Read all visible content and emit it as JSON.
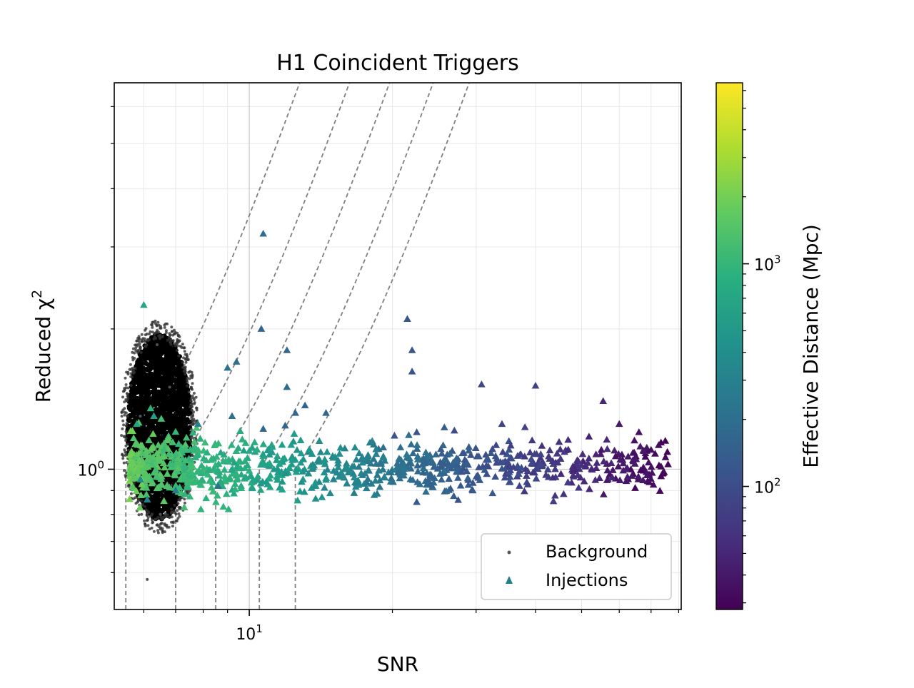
{
  "chart_data": {
    "type": "scatter",
    "title": "H1 Coincident Triggers",
    "xlabel": "SNR",
    "ylabel": "Reduced χ²",
    "ylabel_main": "Reduced χ",
    "ylabel_exp": "2",
    "xscale": "log",
    "yscale": "log",
    "xlim": [
      5.2,
      81
    ],
    "ylim": [
      0.5,
      6.75
    ],
    "x_tick_labels": [
      {
        "value": 10,
        "base": "10",
        "exp": "1"
      }
    ],
    "y_tick_labels": [
      {
        "value": 1,
        "base": "10",
        "exp": "0"
      }
    ],
    "grid": true,
    "legend": {
      "placement": "lower right",
      "entries": [
        "Background",
        "Injections"
      ]
    },
    "colorbar": {
      "label": "Effective Distance (Mpc)",
      "scale": "log",
      "range": [
        28,
        6500
      ],
      "colormap": "viridis",
      "tick_labels": [
        {
          "value": 100,
          "base": "10",
          "exp": "2"
        },
        {
          "value": 1000,
          "base": "10",
          "exp": "3"
        }
      ]
    },
    "reference_curves": [
      {
        "snr_threshold": 5.5
      },
      {
        "snr_threshold": 7.0
      },
      {
        "snr_threshold": 8.5
      },
      {
        "snr_threshold": 10.5
      },
      {
        "snr_threshold": 12.5
      }
    ],
    "background_region": {
      "snr_range": [
        5.5,
        7.6
      ],
      "chi2_range": [
        0.78,
        1.95
      ]
    },
    "series": [
      {
        "name": "Background",
        "marker": "dot",
        "color": "#000000",
        "points_sample": [
          [
            6.1,
            0.58
          ],
          [
            6.5,
            0.8
          ],
          [
            6.8,
            1.5
          ],
          [
            7.2,
            1.1
          ],
          [
            5.9,
            1.3
          ],
          [
            6.4,
            1.85
          ],
          [
            7.5,
            0.9
          ]
        ]
      },
      {
        "name": "Injections",
        "marker": "triangle",
        "points": [
          [
            6.0,
            2.25,
            700
          ],
          [
            10.7,
            3.2,
            190
          ],
          [
            10.6,
            2.0,
            170
          ],
          [
            9.4,
            1.7,
            200
          ],
          [
            9.0,
            1.65,
            210
          ],
          [
            12.0,
            1.8,
            170
          ],
          [
            12.0,
            1.5,
            180
          ],
          [
            13.1,
            1.37,
            170
          ],
          [
            14.5,
            1.32,
            160
          ],
          [
            12.5,
            1.32,
            170
          ],
          [
            10.7,
            1.22,
            170
          ],
          [
            11.9,
            1.24,
            165
          ],
          [
            9.2,
            1.3,
            210
          ],
          [
            21.5,
            2.1,
            120
          ],
          [
            22.0,
            1.8,
            120
          ],
          [
            22.0,
            1.62,
            120
          ],
          [
            30.8,
            1.52,
            90
          ],
          [
            40.0,
            1.51,
            80
          ],
          [
            55.5,
            1.4,
            50
          ],
          [
            20.2,
            1.18,
            110
          ],
          [
            22.5,
            1.2,
            110
          ],
          [
            27.0,
            1.21,
            95
          ],
          [
            34.0,
            1.25,
            85
          ],
          [
            38.0,
            1.23,
            80
          ],
          [
            60.0,
            1.25,
            40
          ],
          [
            66.0,
            1.2,
            35
          ],
          [
            75.0,
            1.15,
            30
          ],
          [
            70.0,
            1.1,
            35
          ],
          [
            65.0,
            1.05,
            40
          ],
          [
            62.0,
            1.0,
            45
          ],
          [
            58.0,
            0.96,
            50
          ],
          [
            50.0,
            1.02,
            60
          ],
          [
            48.0,
            0.97,
            60
          ],
          [
            44.0,
            1.0,
            70
          ],
          [
            22.5,
            0.85,
            130
          ],
          [
            8.6,
            0.92,
            220
          ],
          [
            7.0,
            0.9,
            250
          ],
          [
            6.1,
            0.86,
            300
          ],
          [
            5.8,
            1.25,
            650
          ],
          [
            6.2,
            1.35,
            900
          ],
          [
            6.3,
            1.3,
            600
          ],
          [
            5.9,
            0.95,
            400
          ],
          [
            7.8,
            1.25,
            300
          ]
        ]
      }
    ]
  }
}
